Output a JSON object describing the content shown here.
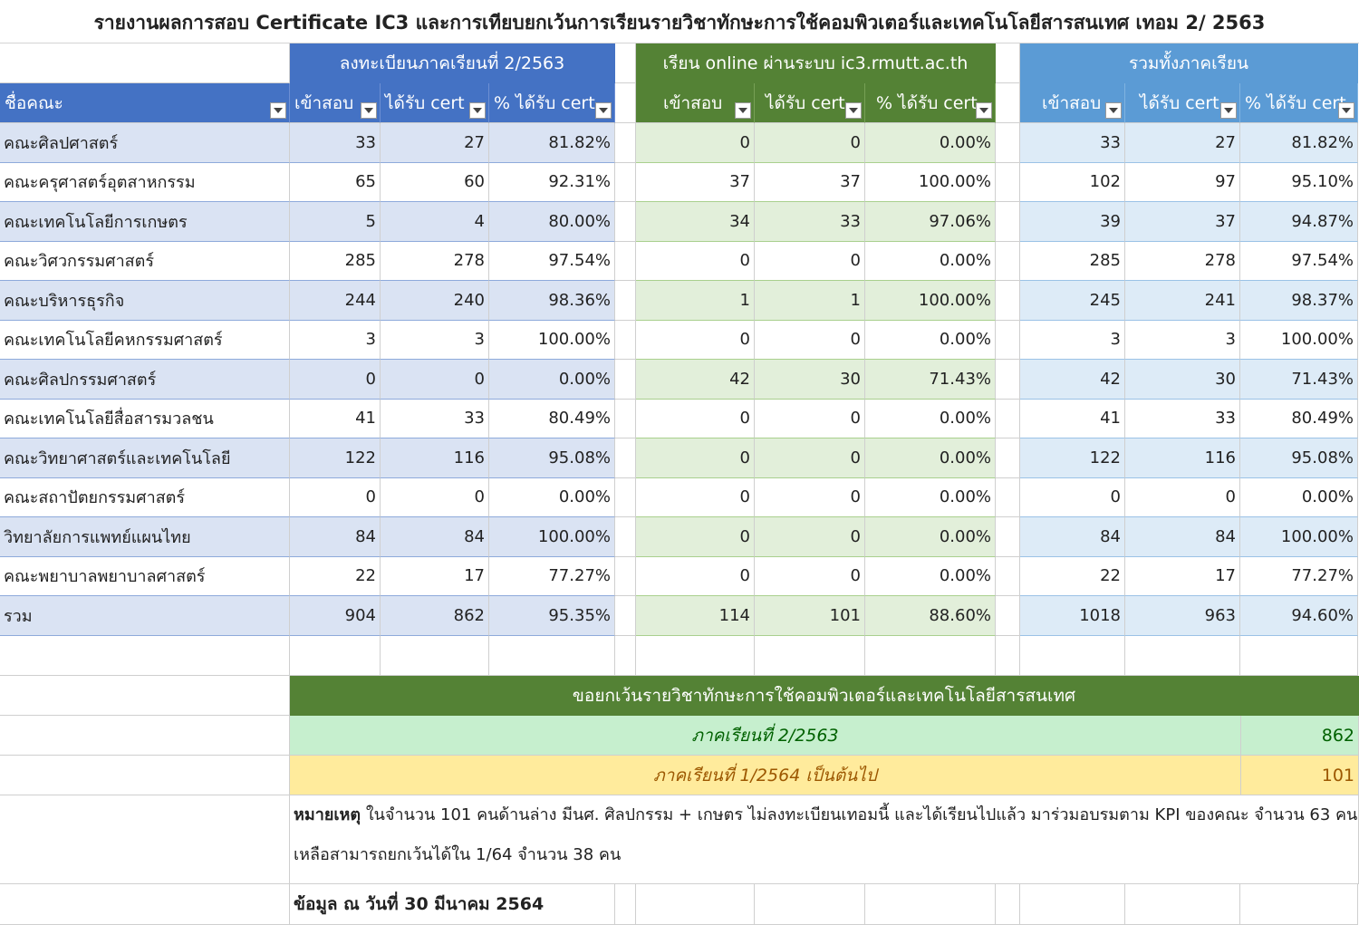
{
  "title": "รายงานผลการสอบ Certificate IC3 และการเทียบยกเว้นการเรียนรายวิชาทักษะการใช้คอมพิวเตอร์และเทคโนโลยีสารสนเทศ เทอม 2/ 2563",
  "groups": {
    "registered": "ลงทะเบียนภาคเรียนที่ 2/2563",
    "online": "เรียน online ผ่านระบบ ic3.rmutt.ac.th",
    "total": "รวมทั้งภาคเรียน"
  },
  "columns": {
    "faculty": "ชื่อคณะ",
    "tested": "เข้าสอบ",
    "certified": "ได้รับ cert",
    "percent": "% ได้รับ cert"
  },
  "rows": [
    {
      "name": "คณะศิลปศาสตร์",
      "r": [
        "33",
        "27",
        "81.82%"
      ],
      "o": [
        "0",
        "0",
        "0.00%"
      ],
      "t": [
        "33",
        "27",
        "81.82%"
      ]
    },
    {
      "name": "คณะครุศาสตร์อุตสาหกรรม",
      "r": [
        "65",
        "60",
        "92.31%"
      ],
      "o": [
        "37",
        "37",
        "100.00%"
      ],
      "t": [
        "102",
        "97",
        "95.10%"
      ]
    },
    {
      "name": "คณะเทคโนโลยีการเกษตร",
      "r": [
        "5",
        "4",
        "80.00%"
      ],
      "o": [
        "34",
        "33",
        "97.06%"
      ],
      "t": [
        "39",
        "37",
        "94.87%"
      ]
    },
    {
      "name": "คณะวิศวกรรมศาสตร์",
      "r": [
        "285",
        "278",
        "97.54%"
      ],
      "o": [
        "0",
        "0",
        "0.00%"
      ],
      "t": [
        "285",
        "278",
        "97.54%"
      ]
    },
    {
      "name": "คณะบริหารธุรกิจ",
      "r": [
        "244",
        "240",
        "98.36%"
      ],
      "o": [
        "1",
        "1",
        "100.00%"
      ],
      "t": [
        "245",
        "241",
        "98.37%"
      ]
    },
    {
      "name": "คณะเทคโนโลยีคหกรรมศาสตร์",
      "r": [
        "3",
        "3",
        "100.00%"
      ],
      "o": [
        "0",
        "0",
        "0.00%"
      ],
      "t": [
        "3",
        "3",
        "100.00%"
      ]
    },
    {
      "name": "คณะศิลปกรรมศาสตร์",
      "r": [
        "0",
        "0",
        "0.00%"
      ],
      "o": [
        "42",
        "30",
        "71.43%"
      ],
      "t": [
        "42",
        "30",
        "71.43%"
      ]
    },
    {
      "name": "คณะเทคโนโลยีสื่อสารมวลชน",
      "r": [
        "41",
        "33",
        "80.49%"
      ],
      "o": [
        "0",
        "0",
        "0.00%"
      ],
      "t": [
        "41",
        "33",
        "80.49%"
      ]
    },
    {
      "name": "คณะวิทยาศาสตร์และเทคโนโลยี",
      "r": [
        "122",
        "116",
        "95.08%"
      ],
      "o": [
        "0",
        "0",
        "0.00%"
      ],
      "t": [
        "122",
        "116",
        "95.08%"
      ]
    },
    {
      "name": "คณะสถาปัตยกรรมศาสตร์",
      "r": [
        "0",
        "0",
        "0.00%"
      ],
      "o": [
        "0",
        "0",
        "0.00%"
      ],
      "t": [
        "0",
        "0",
        "0.00%"
      ]
    },
    {
      "name": "วิทยาลัยการแพทย์แผนไทย",
      "r": [
        "84",
        "84",
        "100.00%"
      ],
      "o": [
        "0",
        "0",
        "0.00%"
      ],
      "t": [
        "84",
        "84",
        "100.00%"
      ]
    },
    {
      "name": "คณะพยาบาลพยาบาลศาสตร์",
      "r": [
        "22",
        "17",
        "77.27%"
      ],
      "o": [
        "0",
        "0",
        "0.00%"
      ],
      "t": [
        "22",
        "17",
        "77.27%"
      ]
    },
    {
      "name": "รวม",
      "r": [
        "904",
        "862",
        "95.35%"
      ],
      "o": [
        "114",
        "101",
        "88.60%"
      ],
      "t": [
        "1018",
        "963",
        "94.60%"
      ]
    }
  ],
  "exemption": {
    "header": "ขอยกเว้นรายวิชาทักษะการใช้คอมพิวเตอร์และเทคโนโลยีสารสนเทศ",
    "sem1_label": "ภาคเรียนที่ 2/2563",
    "sem1_value": "862",
    "sem2_label": "ภาคเรียนที่ 1/2564 เป็นต้นไป",
    "sem2_value": "101"
  },
  "note": {
    "label": "หมายเหตุ",
    "line1": " ในจำนวน 101 คนด้านล่าง มีนศ. ศิลปกรรม + เกษตร ไม่ลงทะเบียนเทอมนี้ และได้เรียนไปแล้ว มาร่วมอบรมตาม KPI ของคณะ จำนวน 63 คน",
    "line2": "เหลือสามารถยกเว้นได้ใน 1/64 จำนวน 38 คน"
  },
  "data_date": "ข้อมูล ณ วันที่ 30 มีนาคม 2564",
  "colors": {
    "blue": "#4472c4",
    "green": "#548235",
    "lightblue": "#5b9bd5"
  }
}
